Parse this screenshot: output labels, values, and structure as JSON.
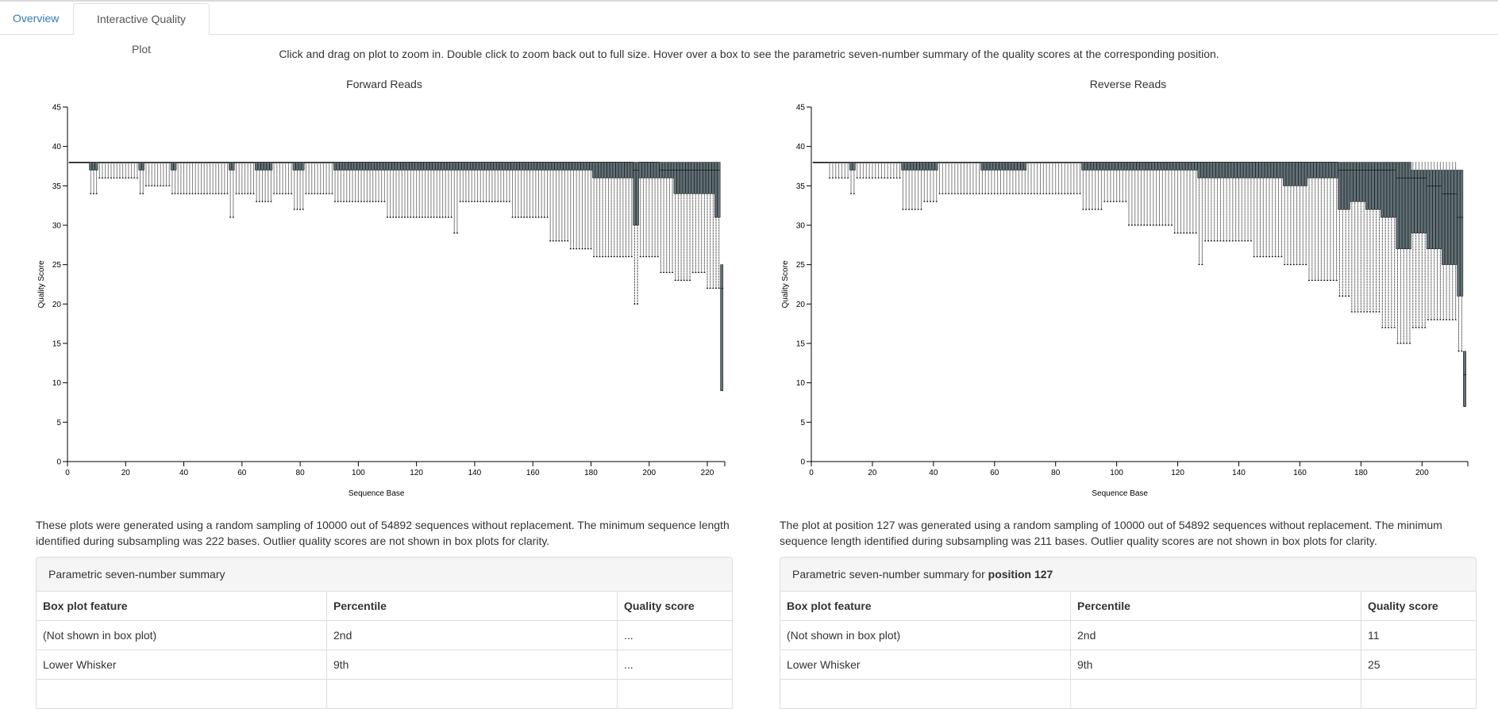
{
  "tabs": [
    {
      "label": "Overview"
    },
    {
      "label": "Interactive Quality Plot"
    }
  ],
  "instructions": "Click and drag on plot to zoom in. Double click to zoom back out to full size. Hover over a box to see the parametric seven-number summary of the quality scores at the corresponding position.",
  "forward": {
    "description": "These plots were generated using a random sampling of 10000 out of 54892 sequences without replacement. The minimum sequence length identified during subsampling was 222 bases. Outlier quality scores are not shown in box plots for clarity.",
    "summary_title": "Parametric seven-number summary",
    "summary_bold": "",
    "table": {
      "headers": [
        "Box plot feature",
        "Percentile",
        "Quality score"
      ],
      "rows": [
        [
          "(Not shown in box plot)",
          "2nd",
          "..."
        ],
        [
          "Lower Whisker",
          "9th",
          "..."
        ]
      ]
    }
  },
  "reverse": {
    "description": "The plot at position 127 was generated using a random sampling of 10000 out of 54892 sequences without replacement. The minimum sequence length identified during subsampling was 211 bases. Outlier quality scores are not shown in box plots for clarity.",
    "summary_title": "Parametric seven-number summary for ",
    "summary_bold": "position 127",
    "table": {
      "headers": [
        "Box plot feature",
        "Percentile",
        "Quality score"
      ],
      "rows": [
        [
          "(Not shown in box plot)",
          "2nd",
          "11"
        ],
        [
          "Lower Whisker",
          "9th",
          "25"
        ]
      ]
    }
  },
  "chart_data": [
    {
      "type": "box",
      "title": "Forward Reads",
      "xlabel": "Sequence Base",
      "ylabel": "Quality Score",
      "xlim": [
        0,
        226
      ],
      "ylim": [
        0,
        45
      ],
      "xticks": [
        0,
        20,
        40,
        60,
        80,
        100,
        120,
        140,
        160,
        180,
        200,
        220
      ],
      "yticks": [
        0,
        5,
        10,
        15,
        20,
        25,
        30,
        35,
        40,
        45
      ],
      "box_color": "#5f6f74",
      "positions": 226,
      "segments": [
        {
          "from": 1,
          "to": 7,
          "whisker_low": 38,
          "q1": 38,
          "median": 38,
          "q3": 38,
          "whisker_high": 38
        },
        {
          "from": 8,
          "to": 10,
          "whisker_low": 34,
          "q1": 37,
          "median": 38,
          "q3": 38,
          "whisker_high": 38
        },
        {
          "from": 11,
          "to": 24,
          "whisker_low": 36,
          "q1": 38,
          "median": 38,
          "q3": 38,
          "whisker_high": 38
        },
        {
          "from": 25,
          "to": 26,
          "whisker_low": 34,
          "q1": 37,
          "median": 38,
          "q3": 38,
          "whisker_high": 38
        },
        {
          "from": 27,
          "to": 35,
          "whisker_low": 35,
          "q1": 38,
          "median": 38,
          "q3": 38,
          "whisker_high": 38
        },
        {
          "from": 36,
          "to": 37,
          "whisker_low": 34,
          "q1": 37,
          "median": 38,
          "q3": 38,
          "whisker_high": 38
        },
        {
          "from": 38,
          "to": 55,
          "whisker_low": 34,
          "q1": 38,
          "median": 38,
          "q3": 38,
          "whisker_high": 38
        },
        {
          "from": 56,
          "to": 57,
          "whisker_low": 31,
          "q1": 37,
          "median": 38,
          "q3": 38,
          "whisker_high": 38
        },
        {
          "from": 58,
          "to": 64,
          "whisker_low": 34,
          "q1": 38,
          "median": 38,
          "q3": 38,
          "whisker_high": 38
        },
        {
          "from": 65,
          "to": 70,
          "whisker_low": 33,
          "q1": 37,
          "median": 38,
          "q3": 38,
          "whisker_high": 38
        },
        {
          "from": 71,
          "to": 77,
          "whisker_low": 34,
          "q1": 38,
          "median": 38,
          "q3": 38,
          "whisker_high": 38
        },
        {
          "from": 78,
          "to": 81,
          "whisker_low": 32,
          "q1": 37,
          "median": 38,
          "q3": 38,
          "whisker_high": 38
        },
        {
          "from": 82,
          "to": 91,
          "whisker_low": 34,
          "q1": 38,
          "median": 38,
          "q3": 38,
          "whisker_high": 38
        },
        {
          "from": 92,
          "to": 95,
          "whisker_low": 33,
          "q1": 37,
          "median": 38,
          "q3": 38,
          "whisker_high": 38
        },
        {
          "from": 96,
          "to": 109,
          "whisker_low": 33,
          "q1": 37,
          "median": 38,
          "q3": 38,
          "whisker_high": 38
        },
        {
          "from": 110,
          "to": 113,
          "whisker_low": 31,
          "q1": 37,
          "median": 38,
          "q3": 38,
          "whisker_high": 38
        },
        {
          "from": 114,
          "to": 124,
          "whisker_low": 31,
          "q1": 37,
          "median": 38,
          "q3": 38,
          "whisker_high": 38
        },
        {
          "from": 125,
          "to": 132,
          "whisker_low": 31,
          "q1": 37,
          "median": 38,
          "q3": 38,
          "whisker_high": 38
        },
        {
          "from": 133,
          "to": 134,
          "whisker_low": 29,
          "q1": 37,
          "median": 38,
          "q3": 38,
          "whisker_high": 38
        },
        {
          "from": 135,
          "to": 152,
          "whisker_low": 33,
          "q1": 37,
          "median": 38,
          "q3": 38,
          "whisker_high": 38
        },
        {
          "from": 153,
          "to": 165,
          "whisker_low": 31,
          "q1": 37,
          "median": 38,
          "q3": 38,
          "whisker_high": 38
        },
        {
          "from": 166,
          "to": 172,
          "whisker_low": 28,
          "q1": 37,
          "median": 38,
          "q3": 38,
          "whisker_high": 38
        },
        {
          "from": 173,
          "to": 180,
          "whisker_low": 27,
          "q1": 37,
          "median": 38,
          "q3": 38,
          "whisker_high": 38
        },
        {
          "from": 181,
          "to": 187,
          "whisker_low": 26,
          "q1": 36,
          "median": 38,
          "q3": 38,
          "whisker_high": 38
        },
        {
          "from": 188,
          "to": 194,
          "whisker_low": 26,
          "q1": 36,
          "median": 38,
          "q3": 38,
          "whisker_high": 38
        },
        {
          "from": 195,
          "to": 196,
          "whisker_low": 20,
          "q1": 30,
          "median": 37,
          "q3": 38,
          "whisker_high": 38
        },
        {
          "from": 197,
          "to": 203,
          "whisker_low": 26,
          "q1": 36,
          "median": 38,
          "q3": 38,
          "whisker_high": 38
        },
        {
          "from": 204,
          "to": 208,
          "whisker_low": 24,
          "q1": 36,
          "median": 37,
          "q3": 38,
          "whisker_high": 38
        },
        {
          "from": 209,
          "to": 214,
          "whisker_low": 23,
          "q1": 34,
          "median": 37,
          "q3": 38,
          "whisker_high": 38
        },
        {
          "from": 215,
          "to": 219,
          "whisker_low": 24,
          "q1": 34,
          "median": 37,
          "q3": 38,
          "whisker_high": 38
        },
        {
          "from": 220,
          "to": 222,
          "whisker_low": 22,
          "q1": 34,
          "median": 37,
          "q3": 38,
          "whisker_high": 38
        },
        {
          "from": 223,
          "to": 224,
          "whisker_low": 22,
          "q1": 31,
          "median": 37,
          "q3": 38,
          "whisker_high": 38
        },
        {
          "from": 225,
          "to": 225,
          "whisker_low": 9,
          "q1": 9,
          "median": 22,
          "q3": 25,
          "whisker_high": 25
        }
      ]
    },
    {
      "type": "box",
      "title": "Reverse Reads",
      "xlabel": "Sequence Base",
      "ylabel": "Quality Score",
      "xlim": [
        0,
        215
      ],
      "ylim": [
        0,
        45
      ],
      "xticks": [
        0,
        20,
        40,
        60,
        80,
        100,
        120,
        140,
        160,
        180,
        200
      ],
      "yticks": [
        0,
        5,
        10,
        15,
        20,
        25,
        30,
        35,
        40,
        45
      ],
      "box_color": "#5f6f74",
      "positions": 215,
      "segments": [
        {
          "from": 1,
          "to": 5,
          "whisker_low": 38,
          "q1": 38,
          "median": 38,
          "q3": 38,
          "whisker_high": 38
        },
        {
          "from": 6,
          "to": 12,
          "whisker_low": 36,
          "q1": 38,
          "median": 38,
          "q3": 38,
          "whisker_high": 38
        },
        {
          "from": 13,
          "to": 14,
          "whisker_low": 34,
          "q1": 37,
          "median": 38,
          "q3": 38,
          "whisker_high": 38
        },
        {
          "from": 15,
          "to": 29,
          "whisker_low": 36,
          "q1": 38,
          "median": 38,
          "q3": 38,
          "whisker_high": 38
        },
        {
          "from": 30,
          "to": 36,
          "whisker_low": 32,
          "q1": 37,
          "median": 38,
          "q3": 38,
          "whisker_high": 38
        },
        {
          "from": 37,
          "to": 41,
          "whisker_low": 33,
          "q1": 37,
          "median": 38,
          "q3": 38,
          "whisker_high": 38
        },
        {
          "from": 42,
          "to": 55,
          "whisker_low": 34,
          "q1": 38,
          "median": 38,
          "q3": 38,
          "whisker_high": 38
        },
        {
          "from": 56,
          "to": 70,
          "whisker_low": 34,
          "q1": 37,
          "median": 38,
          "q3": 38,
          "whisker_high": 38
        },
        {
          "from": 71,
          "to": 88,
          "whisker_low": 34,
          "q1": 38,
          "median": 38,
          "q3": 38,
          "whisker_high": 38
        },
        {
          "from": 89,
          "to": 95,
          "whisker_low": 32,
          "q1": 37,
          "median": 38,
          "q3": 38,
          "whisker_high": 38
        },
        {
          "from": 96,
          "to": 103,
          "whisker_low": 33,
          "q1": 37,
          "median": 38,
          "q3": 38,
          "whisker_high": 38
        },
        {
          "from": 104,
          "to": 110,
          "whisker_low": 30,
          "q1": 37,
          "median": 38,
          "q3": 38,
          "whisker_high": 38
        },
        {
          "from": 111,
          "to": 118,
          "whisker_low": 30,
          "q1": 37,
          "median": 38,
          "q3": 38,
          "whisker_high": 38
        },
        {
          "from": 119,
          "to": 126,
          "whisker_low": 29,
          "q1": 37,
          "median": 38,
          "q3": 38,
          "whisker_high": 38
        },
        {
          "from": 127,
          "to": 128,
          "whisker_low": 25,
          "q1": 36,
          "median": 38,
          "q3": 38,
          "whisker_high": 38
        },
        {
          "from": 129,
          "to": 144,
          "whisker_low": 28,
          "q1": 36,
          "median": 38,
          "q3": 38,
          "whisker_high": 38
        },
        {
          "from": 145,
          "to": 154,
          "whisker_low": 26,
          "q1": 36,
          "median": 38,
          "q3": 38,
          "whisker_high": 38
        },
        {
          "from": 155,
          "to": 162,
          "whisker_low": 25,
          "q1": 35,
          "median": 38,
          "q3": 38,
          "whisker_high": 38
        },
        {
          "from": 163,
          "to": 172,
          "whisker_low": 23,
          "q1": 36,
          "median": 38,
          "q3": 38,
          "whisker_high": 38
        },
        {
          "from": 173,
          "to": 176,
          "whisker_low": 21,
          "q1": 32,
          "median": 37,
          "q3": 38,
          "whisker_high": 38
        },
        {
          "from": 177,
          "to": 181,
          "whisker_low": 19,
          "q1": 33,
          "median": 37,
          "q3": 38,
          "whisker_high": 38
        },
        {
          "from": 182,
          "to": 186,
          "whisker_low": 19,
          "q1": 32,
          "median": 37,
          "q3": 38,
          "whisker_high": 38
        },
        {
          "from": 187,
          "to": 191,
          "whisker_low": 17,
          "q1": 31,
          "median": 37,
          "q3": 38,
          "whisker_high": 38
        },
        {
          "from": 192,
          "to": 196,
          "whisker_low": 15,
          "q1": 27,
          "median": 36,
          "q3": 38,
          "whisker_high": 38
        },
        {
          "from": 197,
          "to": 201,
          "whisker_low": 17,
          "q1": 29,
          "median": 36,
          "q3": 37,
          "whisker_high": 38
        },
        {
          "from": 202,
          "to": 206,
          "whisker_low": 18,
          "q1": 27,
          "median": 35,
          "q3": 37,
          "whisker_high": 38
        },
        {
          "from": 207,
          "to": 211,
          "whisker_low": 18,
          "q1": 25,
          "median": 34,
          "q3": 37,
          "whisker_high": 38
        },
        {
          "from": 212,
          "to": 213,
          "whisker_low": 14,
          "q1": 21,
          "median": 31,
          "q3": 37,
          "whisker_high": 37
        },
        {
          "from": 214,
          "to": 214,
          "whisker_low": 7,
          "q1": 7,
          "median": 11,
          "q3": 14,
          "whisker_high": 14
        }
      ]
    }
  ]
}
